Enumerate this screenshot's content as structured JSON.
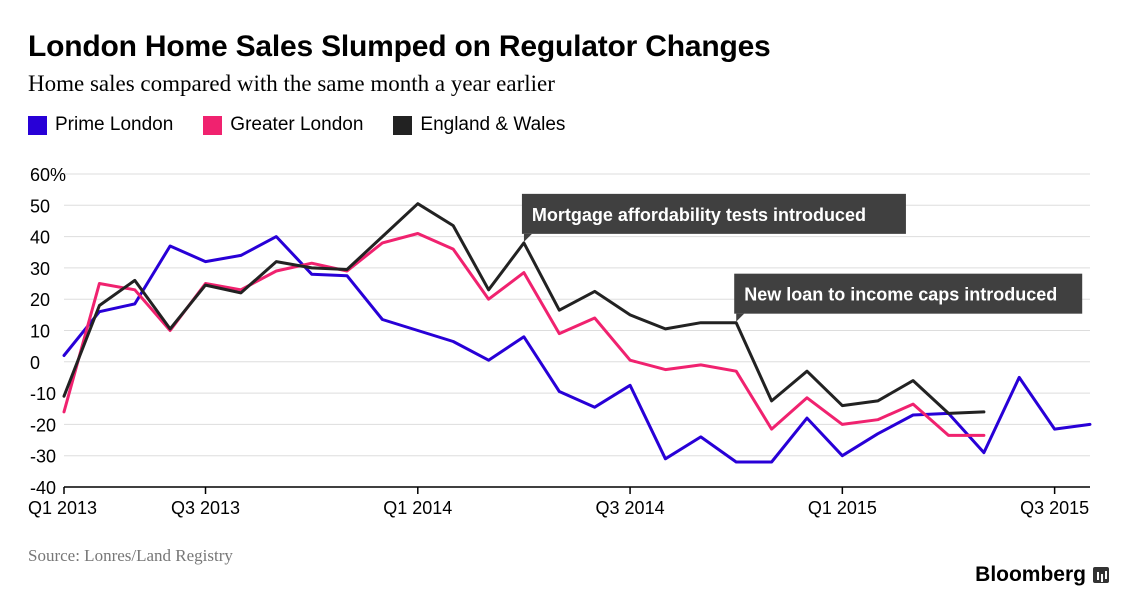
{
  "header": {
    "title": "London Home Sales Slumped on Regulator Changes",
    "subtitle": "Home sales compared with the same month a year earlier"
  },
  "footer": {
    "source": "Source: Lonres/Land Registry",
    "brand": "Bloomberg"
  },
  "colors": {
    "prime": "#2800d7",
    "greater": "#f0226f",
    "england": "#222222",
    "grid": "#dddddd",
    "annotation_bg": "#404040"
  },
  "chart_data": {
    "type": "line",
    "title": "London Home Sales Slumped on Regulator Changes",
    "subtitle": "Home sales compared with the same month a year earlier",
    "xlabel": "",
    "ylabel": "",
    "x_range": [
      0,
      29
    ],
    "x_ticks": [
      {
        "x": 0,
        "label": "Q1 2013"
      },
      {
        "x": 4,
        "label": "Q3 2013"
      },
      {
        "x": 10,
        "label": "Q1 2014"
      },
      {
        "x": 16,
        "label": "Q3 2014"
      },
      {
        "x": 22,
        "label": "Q1 2015"
      },
      {
        "x": 28,
        "label": "Q3 2015"
      }
    ],
    "y_range": [
      -40,
      60
    ],
    "y_ticks": [
      {
        "value": 60,
        "label": "60%"
      },
      {
        "value": 50,
        "label": "50"
      },
      {
        "value": 40,
        "label": "40"
      },
      {
        "value": 30,
        "label": "30"
      },
      {
        "value": 20,
        "label": "20"
      },
      {
        "value": 10,
        "label": "10"
      },
      {
        "value": 0,
        "label": "0"
      },
      {
        "value": -10,
        "label": "-10"
      },
      {
        "value": -20,
        "label": "-20"
      },
      {
        "value": -30,
        "label": "-30"
      },
      {
        "value": -40,
        "label": "-40"
      }
    ],
    "grid": true,
    "legend_position": "top-left",
    "series": [
      {
        "name": "Prime London",
        "color": "#2800d7",
        "values": [
          2,
          16,
          18.5,
          37,
          32,
          34,
          40,
          28,
          27.5,
          13.5,
          10,
          6.5,
          0.5,
          8,
          -9.5,
          -14.5,
          -7.5,
          -31,
          -24,
          -32,
          -32,
          -18,
          -30,
          -23,
          -17,
          -16.5,
          -29,
          -5,
          -21.5,
          -20
        ]
      },
      {
        "name": "Greater London",
        "color": "#f0226f",
        "values": [
          -16,
          25,
          23,
          10,
          25,
          23,
          29,
          31.5,
          29,
          38,
          41,
          36,
          20,
          28.5,
          9,
          14,
          0.5,
          -2.5,
          -1,
          -3,
          -21.5,
          -11.5,
          -20,
          -18.5,
          -13.5,
          -23.5,
          -23.5
        ]
      },
      {
        "name": "England & Wales",
        "color": "#222222",
        "values": [
          -11,
          18,
          26,
          10.5,
          24.5,
          22,
          32,
          30,
          29.5,
          40,
          50.5,
          43.5,
          23,
          38,
          16.5,
          22.5,
          15,
          10.5,
          12.5,
          12.5,
          -12.5,
          -3,
          -14,
          -12.5,
          -6,
          -16.5,
          -16
        ]
      }
    ],
    "annotations": [
      {
        "text": "Mortgage affordability tests introduced",
        "x": 13,
        "y": 38
      },
      {
        "text": "New loan to income caps introduced",
        "x": 19,
        "y": 12.5
      }
    ]
  }
}
